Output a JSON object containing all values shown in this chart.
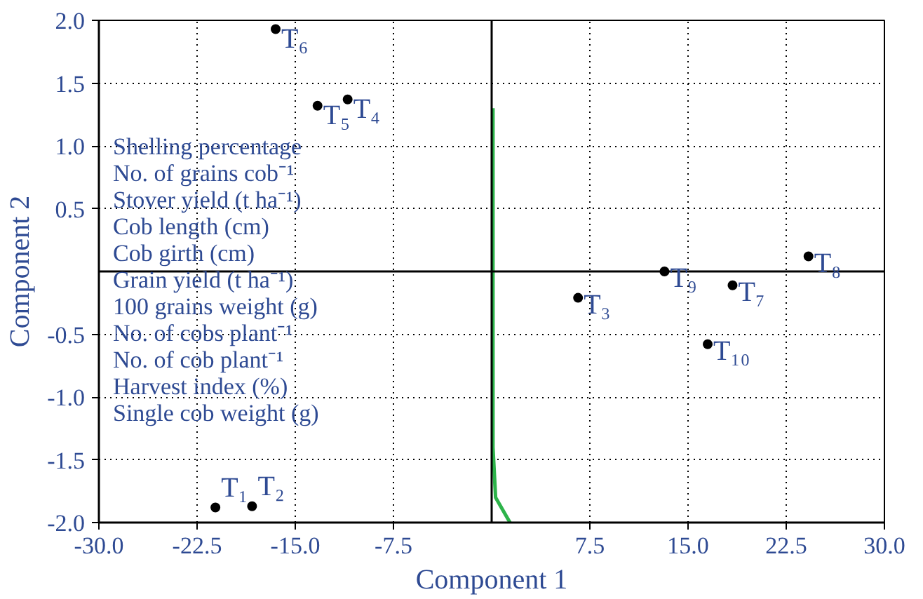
{
  "chart_data": {
    "type": "scatter",
    "xlabel": "Component 1",
    "ylabel": "Component 2",
    "xlim": [
      -30,
      30
    ],
    "ylim": [
      -2,
      2
    ],
    "xticks": [
      {
        "value": -30,
        "label": "-30.0"
      },
      {
        "value": -22.5,
        "label": "-22.5"
      },
      {
        "value": -15,
        "label": "-15.0"
      },
      {
        "value": -7.5,
        "label": "-7.5"
      },
      {
        "value": 7.5,
        "label": "7.5"
      },
      {
        "value": 15,
        "label": "15.0"
      },
      {
        "value": 22.5,
        "label": "22.5"
      },
      {
        "value": 30,
        "label": "30.0"
      }
    ],
    "yticks": [
      {
        "value": 2,
        "label": "2.0"
      },
      {
        "value": 1.5,
        "label": "1.5"
      },
      {
        "value": 1,
        "label": "1.0"
      },
      {
        "value": 0.5,
        "label": "0.5"
      },
      {
        "value": -0.5,
        "label": "-0.5"
      },
      {
        "value": -1,
        "label": "-1.0"
      },
      {
        "value": -1.5,
        "label": "-1.5"
      },
      {
        "value": -2,
        "label": "-2.0"
      }
    ],
    "grid": true,
    "series": [
      {
        "color": "#000000",
        "marker": "circle",
        "x": [
          -21.1,
          -18.3,
          6.6,
          -11.0,
          -13.3,
          -16.5,
          18.4,
          24.2,
          13.2,
          16.5
        ],
        "values": [
          -1.88,
          -1.87,
          -0.21,
          1.37,
          1.32,
          1.93,
          -0.11,
          0.12,
          0.0,
          -0.58
        ],
        "value_labels": [
          "T₁",
          "T₂",
          "T₃",
          "T₄",
          "T₅",
          "T₆",
          "T₇",
          "T₈",
          "T₉",
          "T₁₀"
        ]
      },
      {
        "type": "line",
        "color": "#2db34a",
        "x": [
          0.1,
          0.1,
          0.3,
          1.4
        ],
        "values": [
          1.3,
          -1.4,
          -1.8,
          -2.0
        ]
      }
    ],
    "annotations": [
      "Shelling percentage",
      "No. of grains cob⁻¹",
      "Stover yield (t ha⁻¹)",
      "Cob length (cm)",
      "Cob girth (cm)",
      "Grain yield (t ha⁻¹)",
      "100 grains weight (g)",
      "No. of cobs plant⁻¹",
      "No. of cob plant⁻¹",
      "Harvest index (%)",
      "Single cob weight (g)"
    ]
  }
}
